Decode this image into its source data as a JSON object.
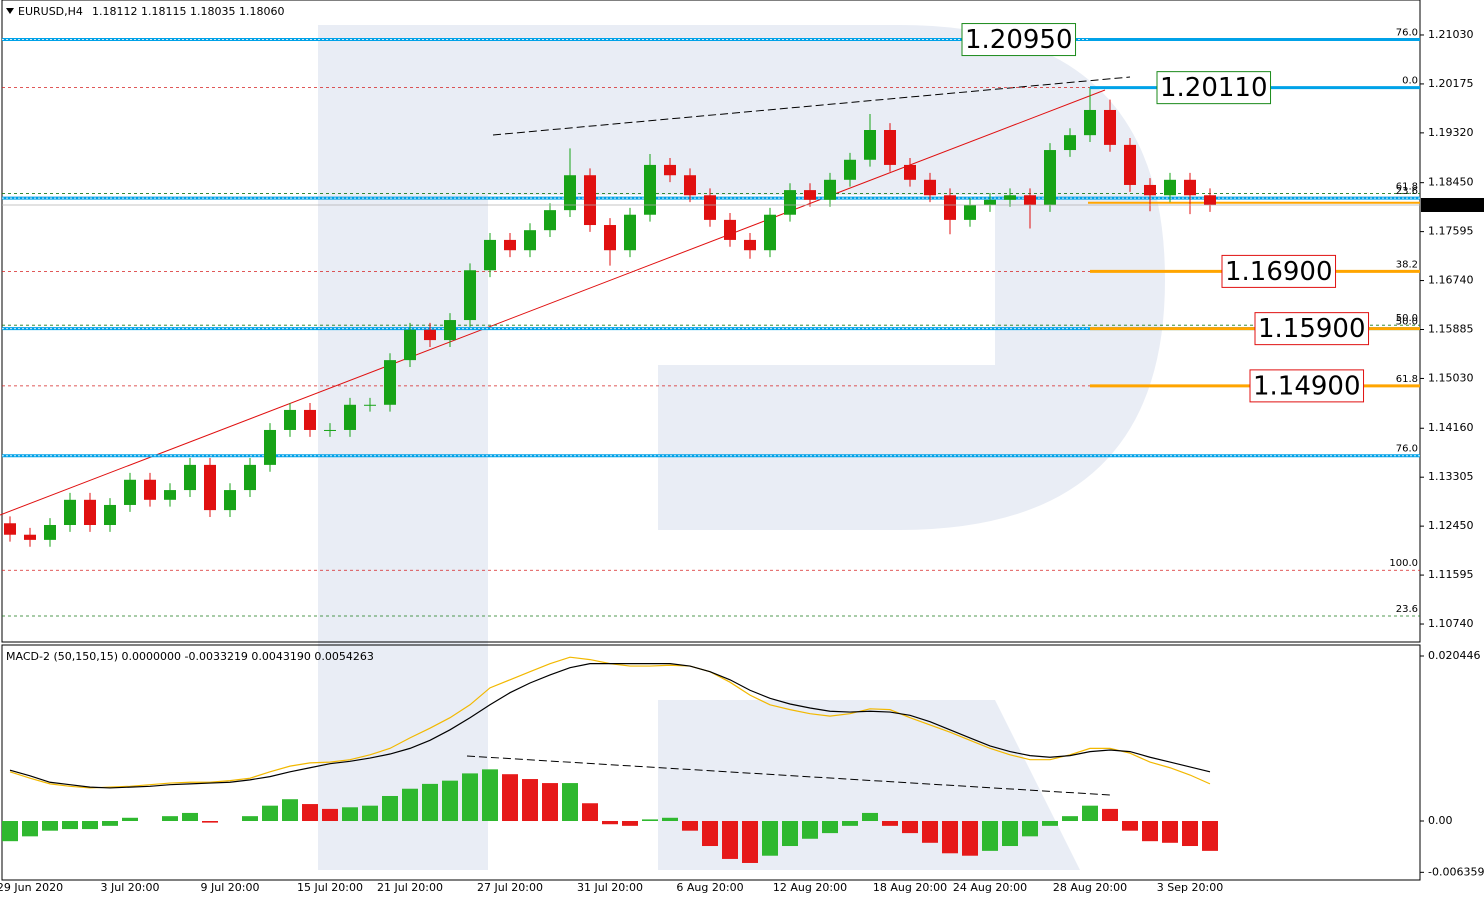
{
  "chart_data": [
    {
      "type": "candlestick",
      "title": "EURUSD,H4",
      "quote": "1.18112 1.18115 1.18035 1.18060",
      "categories": [
        null,
        "29 Jun 2020",
        null,
        null,
        null,
        null,
        "3 Jul 20:00",
        null,
        null,
        null,
        null,
        "9 Jul 20:00",
        null,
        null,
        null,
        null,
        "15 Jul 20:00",
        null,
        null,
        null,
        "21 Jul 20:00",
        null,
        null,
        null,
        null,
        "27 Jul 20:00",
        null,
        null,
        null,
        null,
        "31 Jul 20:00",
        null,
        null,
        null,
        null,
        "6 Aug 20:00",
        null,
        null,
        null,
        null,
        "12 Aug 20:00",
        null,
        null,
        null,
        null,
        "18 Aug 20:00",
        null,
        null,
        null,
        "24 Aug 20:00",
        null,
        null,
        null,
        null,
        "28 Aug 20:00",
        null,
        null,
        null,
        null,
        "3 Sep 20:00",
        null
      ],
      "open": [
        1.125,
        1.123,
        1.1221,
        1.1247,
        1.1291,
        1.1247,
        1.1282,
        1.1326,
        1.1291,
        1.1308,
        1.1352,
        1.1273,
        1.1308,
        1.1352,
        1.1413,
        1.1448,
        1.1413,
        1.1413,
        1.1457,
        1.1457,
        1.1535,
        1.1588,
        1.157,
        1.1605,
        1.1692,
        1.1745,
        1.1727,
        1.1762,
        1.1797,
        1.1858,
        1.1771,
        1.1727,
        1.1789,
        1.1876,
        1.1858,
        1.1823,
        1.178,
        1.1745,
        1.1727,
        1.1789,
        1.1832,
        1.1815,
        1.185,
        1.1885,
        1.1937,
        1.1876,
        1.185,
        1.1823,
        1.178,
        1.1806,
        1.1815,
        1.1823,
        1.1806,
        1.1902,
        1.1928,
        1.1972,
        1.1911,
        1.1841,
        1.1823,
        1.185,
        1.1823
      ],
      "high": [
        1.1262,
        1.1242,
        1.1259,
        1.1303,
        1.1303,
        1.1294,
        1.1338,
        1.1338,
        1.132,
        1.1364,
        1.1364,
        1.132,
        1.1364,
        1.1425,
        1.146,
        1.146,
        1.1425,
        1.1469,
        1.1469,
        1.1547,
        1.16,
        1.16,
        1.1617,
        1.1704,
        1.1757,
        1.1757,
        1.1774,
        1.1809,
        1.1905,
        1.187,
        1.1783,
        1.1801,
        1.1895,
        1.1888,
        1.187,
        1.1835,
        1.1792,
        1.1757,
        1.1801,
        1.1844,
        1.1844,
        1.1862,
        1.1897,
        1.1965,
        1.1949,
        1.1888,
        1.1862,
        1.1835,
        1.1818,
        1.1827,
        1.1835,
        1.1835,
        1.1914,
        1.194,
        1.2011,
        1.199,
        1.1923,
        1.1853,
        1.1862,
        1.1862,
        1.1835
      ],
      "low": [
        1.1218,
        1.1209,
        1.1209,
        1.1235,
        1.1235,
        1.1235,
        1.127,
        1.1279,
        1.1279,
        1.1296,
        1.1261,
        1.1261,
        1.1296,
        1.134,
        1.1401,
        1.1401,
        1.1401,
        1.1401,
        1.1445,
        1.1445,
        1.1523,
        1.1558,
        1.1558,
        1.1593,
        1.168,
        1.1715,
        1.1715,
        1.175,
        1.1785,
        1.1759,
        1.17,
        1.1715,
        1.1777,
        1.1846,
        1.1811,
        1.1768,
        1.1733,
        1.1712,
        1.1715,
        1.1777,
        1.1803,
        1.1803,
        1.1838,
        1.1873,
        1.1864,
        1.1838,
        1.1811,
        1.1755,
        1.1768,
        1.1794,
        1.1803,
        1.1765,
        1.1794,
        1.189,
        1.1916,
        1.1899,
        1.1829,
        1.1795,
        1.1811,
        1.179,
        1.1794
      ],
      "close": [
        1.123,
        1.1221,
        1.1247,
        1.1291,
        1.1247,
        1.1282,
        1.1326,
        1.1291,
        1.1308,
        1.1352,
        1.1273,
        1.1308,
        1.1352,
        1.1413,
        1.1448,
        1.1413,
        1.1413,
        1.1457,
        1.1457,
        1.1535,
        1.1588,
        1.157,
        1.1605,
        1.1692,
        1.1745,
        1.1727,
        1.1762,
        1.1797,
        1.1858,
        1.1771,
        1.1727,
        1.1789,
        1.1876,
        1.1858,
        1.1823,
        1.178,
        1.1745,
        1.1727,
        1.1789,
        1.1832,
        1.1815,
        1.185,
        1.1885,
        1.1937,
        1.1876,
        1.185,
        1.1823,
        1.178,
        1.1806,
        1.1815,
        1.1823,
        1.1806,
        1.1902,
        1.1928,
        1.1972,
        1.1911,
        1.1841,
        1.1823,
        1.185,
        1.1823,
        1.1806
      ],
      "up_color": "#17a317",
      "down_color": "#e01010",
      "ylim": [
        1.10426,
        1.21641
      ],
      "yticks": [
        {
          "value": 1.2103,
          "label": "1.21030"
        },
        1.20175,
        {
          "value": 1.1932,
          "label": "1.19320"
        },
        {
          "value": 1.1845,
          "label": "1.18450"
        },
        1.17595,
        {
          "value": 1.1674,
          "label": "1.16740"
        },
        1.15885,
        {
          "value": 1.1503,
          "label": "1.15030"
        },
        {
          "value": 1.1416,
          "label": "1.14160"
        },
        1.13305,
        {
          "value": 1.1245,
          "label": "1.12450"
        },
        1.11595,
        {
          "value": 1.1074,
          "label": "1.10740"
        }
      ],
      "last_price": {
        "value": 1.1806,
        "label": "1.18060"
      },
      "levels": [
        1.2095,
        1.1818,
        1.159,
        1.1368
      ],
      "level_color": "#00a2e8",
      "fib_levels": [
        {
          "label": "76.0",
          "value": 1.2095,
          "color": "#1a7a1a"
        },
        {
          "label": "0.0",
          "value": 1.2011,
          "color": "#d62020"
        },
        {
          "label": "61.8",
          "value": 1.1826,
          "color": "#1a7a1a"
        },
        {
          "label": "23.6",
          "value": 1.1818,
          "color": "#d62020"
        },
        {
          "label": "38.2",
          "value": 1.169,
          "color": "#d62020"
        },
        {
          "label": "50.0",
          "value": 1.1596,
          "color": "#1a7a1a"
        },
        {
          "label": "50.0",
          "value": 1.159,
          "color": "#d62020"
        },
        {
          "label": "61.8",
          "value": 1.149,
          "color": "#d62020"
        },
        {
          "label": "76.0",
          "value": 1.1368,
          "color": "#d62020"
        },
        {
          "label": "100.0",
          "value": 1.1168,
          "color": "#d62020"
        },
        {
          "label": "23.6",
          "value": 1.1088,
          "color": "#1a7a1a"
        }
      ],
      "annotations": [
        {
          "label": "1.20950",
          "value": 1.2095,
          "color": "#1a8a1a",
          "line_color": "#00a2e8"
        },
        {
          "label": "1.20110",
          "value": 1.2011,
          "color": "#1a8a1a",
          "line_color": "#00a2e8"
        },
        {
          "label": "1.16900",
          "value": 1.169,
          "color": "#e01010",
          "line_color": "#ffa500"
        },
        {
          "label": "1.15900",
          "value": 1.159,
          "color": "#e01010",
          "line_color": "#ffa500"
        },
        {
          "label": "1.14900",
          "value": 1.149,
          "color": "#e01010",
          "line_color": "#ffa500"
        }
      ],
      "marker_level": {
        "value": 1.181,
        "color": "#ffa500"
      }
    },
    {
      "type": "macd",
      "title": "MACD-2 (50,150,15) 0.0000000 -0.0033219 0.0043190 0.0054263",
      "ylim": [
        -0.00731,
        0.021809
      ],
      "yticks": [
        0.020446,
        {
          "value": 0,
          "label": "0.00"
        },
        -0.006359
      ],
      "histogram": {
        "up_color": "#2fb82f",
        "down_color": "#e61919",
        "values": [
          -0.0025,
          -0.0019,
          -0.0012,
          -0.001,
          -0.001,
          -0.0006,
          0.0004,
          0.0,
          0.0006,
          0.001,
          -0.0002,
          0.0,
          0.0006,
          0.0019,
          0.0027,
          0.0021,
          0.0015,
          0.0017,
          0.0019,
          0.0031,
          0.004,
          0.0046,
          0.005,
          0.0059,
          0.0064,
          0.0058,
          0.0052,
          0.0047,
          0.0047,
          0.0022,
          -0.0004,
          -0.0006,
          0.0002,
          0.0004,
          -0.0012,
          -0.0031,
          -0.0047,
          -0.0052,
          -0.0043,
          -0.0031,
          -0.0022,
          -0.0015,
          -0.0006,
          0.001,
          -0.0006,
          -0.0015,
          -0.0027,
          -0.004,
          -0.0043,
          -0.0037,
          -0.0031,
          -0.0019,
          -0.0006,
          0.0006,
          0.0019,
          0.0015,
          -0.0012,
          -0.0025,
          -0.0027,
          -0.0031,
          -0.0037
        ]
      },
      "series": [
        {
          "color": "#f2b800",
          "values": [
            0.0061,
            0.0053,
            0.0046,
            0.0043,
            0.0041,
            0.0042,
            0.0043,
            0.0045,
            0.0047,
            0.0048,
            0.0048,
            0.005,
            0.0053,
            0.0061,
            0.0068,
            0.0072,
            0.0073,
            0.0076,
            0.0082,
            0.009,
            0.0103,
            0.0115,
            0.0128,
            0.0144,
            0.0165,
            0.0175,
            0.0185,
            0.0195,
            0.0203,
            0.02,
            0.0195,
            0.0192,
            0.0192,
            0.0193,
            0.0192,
            0.0185,
            0.0172,
            0.0156,
            0.0144,
            0.0138,
            0.0133,
            0.013,
            0.0133,
            0.0139,
            0.0138,
            0.0128,
            0.0119,
            0.011,
            0.01,
            0.009,
            0.0082,
            0.0076,
            0.0076,
            0.0082,
            0.009,
            0.009,
            0.0084,
            0.0073,
            0.0066,
            0.0057,
            0.0046
          ]
        },
        {
          "color": "#000000",
          "values": [
            0.0063,
            0.0056,
            0.0048,
            0.0045,
            0.0042,
            0.0041,
            0.0042,
            0.0043,
            0.0045,
            0.0046,
            0.0047,
            0.0048,
            0.0051,
            0.0055,
            0.0061,
            0.0066,
            0.0071,
            0.0074,
            0.0078,
            0.0083,
            0.009,
            0.01,
            0.0113,
            0.0128,
            0.0144,
            0.0159,
            0.0171,
            0.0181,
            0.019,
            0.0195,
            0.0195,
            0.0195,
            0.0195,
            0.0195,
            0.0192,
            0.0185,
            0.0175,
            0.0162,
            0.0152,
            0.0145,
            0.014,
            0.0136,
            0.0135,
            0.0136,
            0.0135,
            0.0131,
            0.0123,
            0.0113,
            0.0103,
            0.0093,
            0.0086,
            0.0081,
            0.0079,
            0.0081,
            0.0086,
            0.0088,
            0.0086,
            0.0079,
            0.0073,
            0.0067,
            0.0061
          ]
        }
      ]
    }
  ]
}
